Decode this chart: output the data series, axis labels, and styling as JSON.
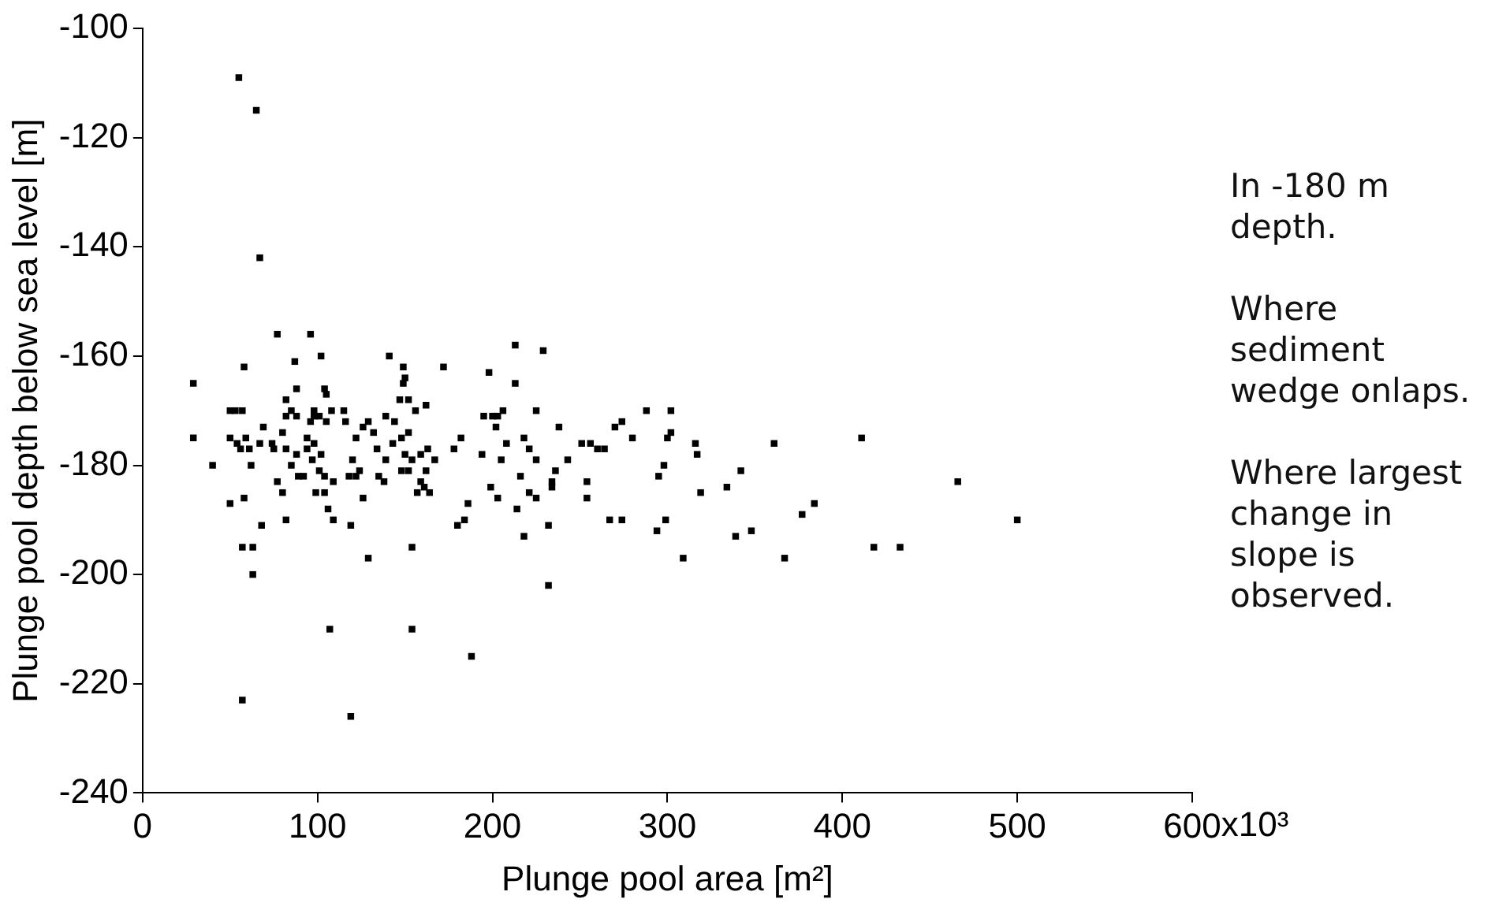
{
  "chart_data": {
    "type": "scatter",
    "xlabel": "Plunge pool area [m²]",
    "ylabel": "Plunge pool depth below sea level [m]",
    "annotations": [
      "In -180 m depth.",
      "Where sediment wedge onlaps.",
      "Where largest change in slope is observed.",
      "x10³"
    ],
    "xlim": [
      0,
      600
    ],
    "xticks": [
      0,
      100,
      200,
      300,
      400,
      500,
      600
    ],
    "ylim": [
      -240,
      -100
    ],
    "yticks": [
      -240,
      -220,
      -200,
      -180,
      -160,
      -140,
      -120,
      -100
    ],
    "grid": false,
    "legend": false,
    "marker": "square",
    "series": [
      {
        "color": "#000000",
        "x": [
          55,
          65,
          67,
          57,
          119,
          107,
          154,
          188,
          232,
          129,
          63,
          57,
          63,
          154,
          309,
          367,
          418,
          433,
          500,
          466,
          411,
          361,
          384,
          377,
          339,
          348,
          342,
          334,
          319,
          316,
          317,
          302,
          302,
          300,
          298,
          295,
          294,
          299,
          288,
          274,
          267,
          274,
          270,
          280,
          264,
          260,
          256,
          251,
          254,
          254,
          238,
          243,
          236,
          234,
          234,
          232,
          229,
          213,
          213,
          198,
          206,
          200,
          203,
          195,
          225,
          202,
          208,
          194,
          205,
          199,
          203,
          218,
          221,
          225,
          216,
          221,
          225,
          214,
          218,
          182,
          178,
          184,
          180,
          186,
          172,
          162,
          163,
          167,
          162,
          159,
          161,
          157,
          164,
          149,
          150,
          149,
          141,
          147,
          152,
          139,
          144,
          156,
          143,
          148,
          152,
          134,
          139,
          150,
          154,
          159,
          148,
          152,
          135,
          138,
          126,
          129,
          132,
          120,
          124,
          118,
          122,
          126,
          115,
          116,
          122,
          108,
          105,
          104,
          105,
          102,
          96,
          98,
          101,
          96,
          98,
          94,
          98,
          102,
          97,
          94,
          101,
          104,
          109,
          99,
          104,
          106,
          109,
          119,
          87,
          88,
          85,
          82,
          88,
          77,
          82,
          80,
          75,
          82,
          88,
          85,
          77,
          80,
          92,
          89,
          82,
          74,
          69,
          67,
          68,
          61,
          58,
          57,
          53,
          50,
          59,
          54,
          50,
          56,
          58,
          50,
          62,
          29,
          29,
          40
        ],
        "values": [
          -109,
          -115,
          -142,
          -223,
          -226,
          -210,
          -210,
          -215,
          -202,
          -197,
          -200,
          -195,
          -195,
          -195,
          -197,
          -197,
          -195,
          -195,
          -190,
          -183,
          -175,
          -176,
          -187,
          -189,
          -193,
          -192,
          -181,
          -184,
          -185,
          -176,
          -178,
          -170,
          -174,
          -175,
          -180,
          -182,
          -192,
          -190,
          -170,
          -190,
          -190,
          -172,
          -173,
          -175,
          -177,
          -177,
          -176,
          -176,
          -183,
          -186,
          -173,
          -179,
          -181,
          -183,
          -184,
          -191,
          -159,
          -158,
          -165,
          -163,
          -170,
          -171,
          -171,
          -171,
          -170,
          -173,
          -176,
          -178,
          -179,
          -184,
          -186,
          -175,
          -177,
          -179,
          -182,
          -185,
          -186,
          -188,
          -193,
          -175,
          -177,
          -190,
          -191,
          -187,
          -162,
          -169,
          -177,
          -179,
          -181,
          -183,
          -184,
          -185,
          -185,
          -162,
          -164,
          -165,
          -160,
          -168,
          -168,
          -171,
          -172,
          -170,
          -176,
          -175,
          -174,
          -177,
          -179,
          -178,
          -179,
          -178,
          -181,
          -181,
          -182,
          -183,
          -173,
          -172,
          -174,
          -179,
          -181,
          -182,
          -182,
          -186,
          -170,
          -172,
          -175,
          -170,
          -172,
          -166,
          -167,
          -160,
          -156,
          -170,
          -171,
          -172,
          -171,
          -175,
          -176,
          -178,
          -179,
          -177,
          -181,
          -182,
          -183,
          -185,
          -185,
          -188,
          -190,
          -191,
          -161,
          -166,
          -170,
          -171,
          -171,
          -156,
          -168,
          -174,
          -177,
          -177,
          -178,
          -180,
          -183,
          -185,
          -182,
          -182,
          -190,
          -176,
          -173,
          -176,
          -191,
          -177,
          -162,
          -170,
          -170,
          -170,
          -175,
          -176,
          -175,
          -177,
          -186,
          -187,
          -180,
          -165,
          -175,
          -180
        ]
      }
    ]
  }
}
